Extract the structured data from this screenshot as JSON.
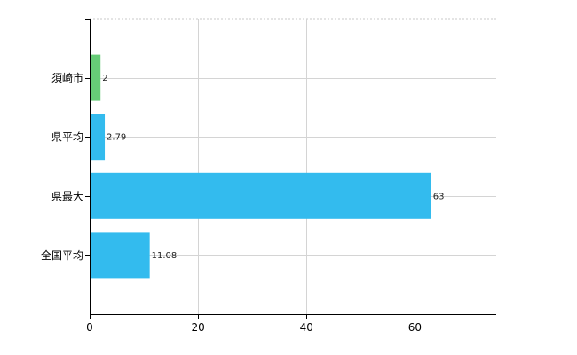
{
  "chart_data": {
    "type": "bar",
    "orientation": "horizontal",
    "categories": [
      "須崎市",
      "県平均",
      "県最大",
      "全国平均"
    ],
    "values": [
      2,
      2.79,
      63,
      11.08
    ],
    "data_labels": [
      "2",
      "2.79",
      "63",
      "11.08"
    ],
    "bar_colors": [
      "#66cc77",
      "#33bbee",
      "#33bbee",
      "#33bbee"
    ],
    "title": "",
    "xlabel": "",
    "ylabel": "",
    "xlim": [
      0,
      75
    ],
    "x_ticks": [
      0,
      20,
      40,
      60
    ],
    "grid": true,
    "legend": "none"
  }
}
